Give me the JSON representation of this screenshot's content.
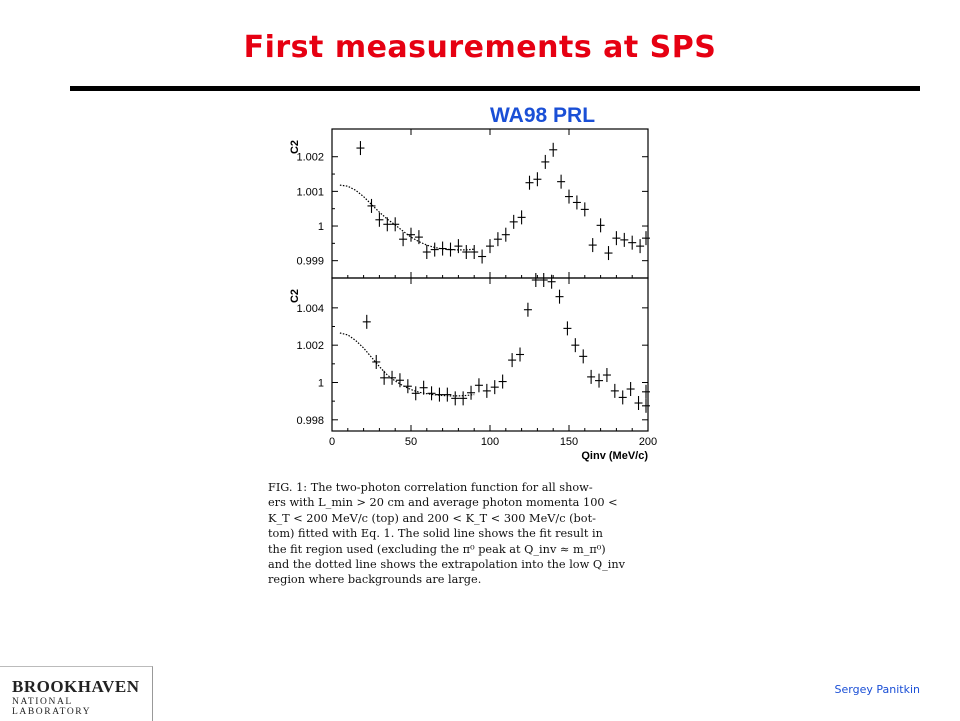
{
  "slide": {
    "title": "First measurements at SPS",
    "subtitle": "WA98 PRL",
    "author": "Sergey Panitkin",
    "logo_main": "BROOKHAVEN",
    "logo_sub": "NATIONAL LABORATORY"
  },
  "caption": {
    "lines": [
      "FIG. 1: The two-photon correlation function for all show-",
      "ers with L_min > 20 cm and average photon momenta 100 <",
      "K_T < 200 MeV/c (top) and 200 < K_T < 300 MeV/c (bot-",
      "tom) fitted with Eq. 1. The solid line shows the fit result in",
      "the fit region used (excluding the π⁰ peak at Q_inv ≈ m_π⁰)",
      "and the dotted line shows the extrapolation into the low Q_inv",
      "region where backgrounds are large."
    ]
  },
  "chart_data": [
    {
      "type": "scatter",
      "panel": "top",
      "ylabel": "C2",
      "xlim": [
        0,
        200
      ],
      "ylim": [
        0.9985,
        1.0028
      ],
      "yticks": [
        0.999,
        1,
        1.001,
        1.002
      ],
      "ytick_labels": [
        "0.999",
        "1",
        "1.001",
        "1.002"
      ],
      "points": [
        {
          "x": 18,
          "y": 1.00225
        },
        {
          "x": 25,
          "y": 1.00058
        },
        {
          "x": 30,
          "y": 1.00018
        },
        {
          "x": 35,
          "y": 1.00005
        },
        {
          "x": 40,
          "y": 1.00005
        },
        {
          "x": 45,
          "y": 0.99962
        },
        {
          "x": 50,
          "y": 0.99975
        },
        {
          "x": 55,
          "y": 0.99968
        },
        {
          "x": 60,
          "y": 0.99925
        },
        {
          "x": 65,
          "y": 0.99932
        },
        {
          "x": 70,
          "y": 0.99935
        },
        {
          "x": 75,
          "y": 0.99932
        },
        {
          "x": 80,
          "y": 0.99942
        },
        {
          "x": 85,
          "y": 0.99925
        },
        {
          "x": 90,
          "y": 0.99925
        },
        {
          "x": 95,
          "y": 0.99912
        },
        {
          "x": 100,
          "y": 0.99942
        },
        {
          "x": 105,
          "y": 0.99962
        },
        {
          "x": 110,
          "y": 0.99975
        },
        {
          "x": 115,
          "y": 1.00012
        },
        {
          "x": 120,
          "y": 1.00025
        },
        {
          "x": 125,
          "y": 1.00125
        },
        {
          "x": 130,
          "y": 1.00135
        },
        {
          "x": 135,
          "y": 1.00185
        },
        {
          "x": 140,
          "y": 1.0022
        },
        {
          "x": 145,
          "y": 1.00128
        },
        {
          "x": 150,
          "y": 1.00085
        },
        {
          "x": 155,
          "y": 1.00068
        },
        {
          "x": 160,
          "y": 1.00048
        },
        {
          "x": 165,
          "y": 0.99945
        },
        {
          "x": 170,
          "y": 1.00002
        },
        {
          "x": 175,
          "y": 0.99922
        },
        {
          "x": 180,
          "y": 0.99965
        },
        {
          "x": 185,
          "y": 0.9996
        },
        {
          "x": 190,
          "y": 0.99952
        },
        {
          "x": 195,
          "y": 0.99942
        },
        {
          "x": 200,
          "y": 0.99965
        }
      ],
      "fit_curve": [
        {
          "x": 5,
          "y": 1.00118
        },
        {
          "x": 10,
          "y": 1.00115
        },
        {
          "x": 15,
          "y": 1.00103
        },
        {
          "x": 20,
          "y": 1.00085
        },
        {
          "x": 25,
          "y": 1.00062
        },
        {
          "x": 30,
          "y": 1.0004
        },
        {
          "x": 35,
          "y": 1.0002
        },
        {
          "x": 40,
          "y": 1.00003
        },
        {
          "x": 45,
          "y": 0.99985
        },
        {
          "x": 50,
          "y": 0.99968
        },
        {
          "x": 55,
          "y": 0.99955
        },
        {
          "x": 60,
          "y": 0.99945
        },
        {
          "x": 65,
          "y": 0.99938
        },
        {
          "x": 70,
          "y": 0.99934
        },
        {
          "x": 75,
          "y": 0.99932
        },
        {
          "x": 80,
          "y": 0.99931
        },
        {
          "x": 85,
          "y": 0.99931
        },
        {
          "x": 90,
          "y": 0.99933
        }
      ]
    },
    {
      "type": "scatter",
      "panel": "bottom",
      "ylabel": "C2",
      "xlabel": "Qinv (MeV/c)",
      "xlim": [
        0,
        200
      ],
      "ylim": [
        0.9974,
        1.0056
      ],
      "xticks": [
        0,
        50,
        100,
        150,
        200
      ],
      "xtick_labels": [
        "0",
        "50",
        "100",
        "150",
        "200"
      ],
      "yticks": [
        0.998,
        1,
        1.002,
        1.004
      ],
      "ytick_labels": [
        "0.998",
        "1",
        "1.002",
        "1.004"
      ],
      "points": [
        {
          "x": 22,
          "y": 1.00325
        },
        {
          "x": 28,
          "y": 1.0011
        },
        {
          "x": 33,
          "y": 1.00025
        },
        {
          "x": 38,
          "y": 1.00025
        },
        {
          "x": 43,
          "y": 1.00012
        },
        {
          "x": 48,
          "y": 0.9998
        },
        {
          "x": 53,
          "y": 0.99942
        },
        {
          "x": 58,
          "y": 0.99972
        },
        {
          "x": 63,
          "y": 0.99942
        },
        {
          "x": 68,
          "y": 0.99935
        },
        {
          "x": 73,
          "y": 0.99935
        },
        {
          "x": 78,
          "y": 0.99915
        },
        {
          "x": 83,
          "y": 0.99915
        },
        {
          "x": 88,
          "y": 0.99945
        },
        {
          "x": 93,
          "y": 0.99985
        },
        {
          "x": 98,
          "y": 0.99955
        },
        {
          "x": 103,
          "y": 0.99975
        },
        {
          "x": 108,
          "y": 1.00005
        },
        {
          "x": 114,
          "y": 1.0012
        },
        {
          "x": 119,
          "y": 1.0015
        },
        {
          "x": 124,
          "y": 1.0039
        },
        {
          "x": 129,
          "y": 1.0055
        },
        {
          "x": 134,
          "y": 1.0066
        },
        {
          "x": 139,
          "y": 1.0054
        },
        {
          "x": 144,
          "y": 1.0046
        },
        {
          "x": 149,
          "y": 1.0029
        },
        {
          "x": 154,
          "y": 1.002
        },
        {
          "x": 159,
          "y": 1.0014
        },
        {
          "x": 164,
          "y": 1.0003
        },
        {
          "x": 169,
          "y": 1.0001
        },
        {
          "x": 174,
          "y": 1.0004
        },
        {
          "x": 179,
          "y": 0.99955
        },
        {
          "x": 184,
          "y": 0.9992
        },
        {
          "x": 189,
          "y": 0.99965
        },
        {
          "x": 194,
          "y": 0.9989
        },
        {
          "x": 199,
          "y": 0.9995
        },
        {
          "x": 203,
          "y": 0.99875
        }
      ],
      "fit_curve": [
        {
          "x": 5,
          "y": 1.00265
        },
        {
          "x": 10,
          "y": 1.00255
        },
        {
          "x": 15,
          "y": 1.00225
        },
        {
          "x": 20,
          "y": 1.00185
        },
        {
          "x": 25,
          "y": 1.00135
        },
        {
          "x": 30,
          "y": 1.00085
        },
        {
          "x": 35,
          "y": 1.0004
        },
        {
          "x": 40,
          "y": 1.00008
        },
        {
          "x": 45,
          "y": 0.99982
        },
        {
          "x": 50,
          "y": 0.99962
        },
        {
          "x": 55,
          "y": 0.99948
        },
        {
          "x": 60,
          "y": 0.9994
        },
        {
          "x": 65,
          "y": 0.99934
        },
        {
          "x": 70,
          "y": 0.9993
        },
        {
          "x": 75,
          "y": 0.99928
        },
        {
          "x": 80,
          "y": 0.99928
        },
        {
          "x": 85,
          "y": 0.9993
        },
        {
          "x": 90,
          "y": 0.99935
        }
      ]
    }
  ]
}
